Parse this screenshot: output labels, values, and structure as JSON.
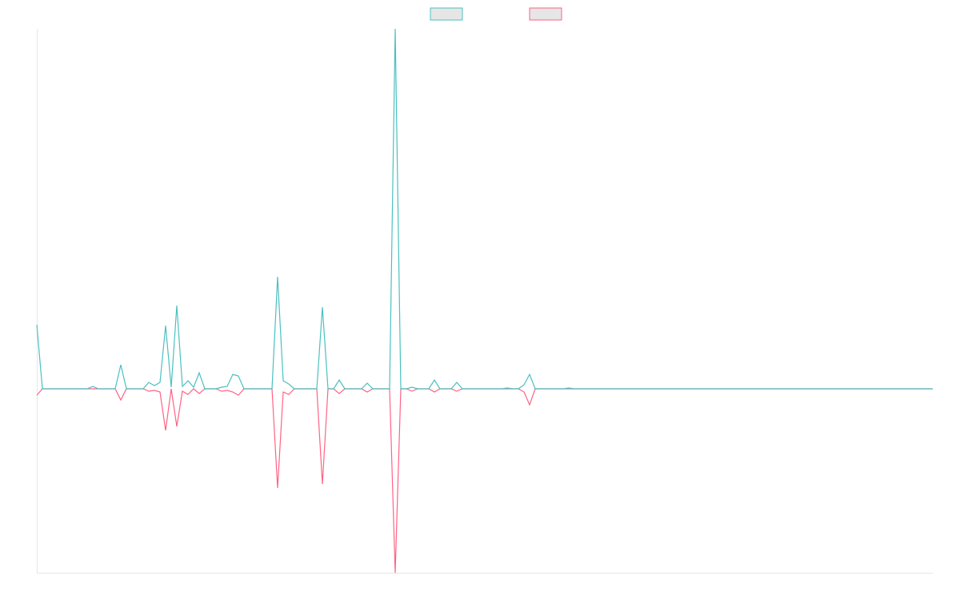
{
  "chart_data": {
    "type": "line",
    "ylim": [
      -230,
      450
    ],
    "legend": "top",
    "series": [
      {
        "color": "#4bc0c0",
        "values": [
          80,
          0,
          0,
          0,
          0,
          0,
          0,
          0,
          0,
          0,
          3,
          0,
          0,
          0,
          0,
          30,
          0,
          0,
          0,
          0,
          8,
          4,
          8,
          79,
          2,
          104,
          3,
          10,
          2,
          20,
          0,
          0,
          0,
          2,
          3,
          18,
          16,
          0,
          0,
          0,
          0,
          0,
          0,
          140,
          10,
          6,
          0,
          0,
          0,
          0,
          0,
          102,
          0,
          0,
          11,
          0,
          0,
          0,
          0,
          7,
          0,
          0,
          0,
          0,
          450,
          0,
          0,
          2,
          0,
          0,
          0,
          11,
          0,
          0,
          0,
          8,
          0,
          0,
          0,
          0,
          0,
          0,
          0,
          0,
          1,
          0,
          0,
          5,
          18,
          0,
          0,
          0,
          0,
          0,
          0,
          1,
          0,
          0,
          0,
          0,
          0,
          0,
          0,
          0,
          0,
          0,
          0,
          0,
          0,
          0,
          0,
          0,
          0,
          0,
          0,
          0,
          0,
          0,
          0,
          0,
          0,
          0,
          0,
          0,
          0,
          0,
          0,
          0,
          0,
          0,
          0,
          0,
          0,
          0,
          0,
          0,
          0,
          0,
          0,
          0,
          0,
          0,
          0,
          0,
          0,
          0,
          0,
          0,
          0,
          0,
          0,
          0,
          0,
          0,
          0,
          0,
          0,
          0,
          0,
          0,
          0
        ]
      },
      {
        "color": "#ff6384",
        "values": [
          -8,
          0,
          0,
          0,
          0,
          0,
          0,
          0,
          0,
          0,
          0,
          0,
          0,
          0,
          0,
          -14,
          0,
          0,
          0,
          0,
          -3,
          -2,
          -4,
          -52,
          0,
          -47,
          -3,
          -7,
          0,
          -6,
          0,
          0,
          0,
          -3,
          -2,
          -4,
          -8,
          0,
          0,
          0,
          0,
          0,
          0,
          -124,
          -4,
          -7,
          0,
          0,
          0,
          0,
          0,
          -119,
          0,
          0,
          -6,
          0,
          0,
          0,
          0,
          -4,
          0,
          0,
          0,
          0,
          -230,
          0,
          0,
          -3,
          0,
          0,
          0,
          -4,
          0,
          0,
          0,
          -3,
          0,
          0,
          0,
          0,
          0,
          0,
          0,
          0,
          0,
          0,
          0,
          -4,
          -20,
          0,
          0,
          0,
          0,
          0,
          0,
          0,
          0,
          0,
          0,
          0,
          0,
          0,
          0,
          0,
          0,
          0,
          0,
          0,
          0,
          0,
          0,
          0,
          0,
          0,
          0,
          0,
          0,
          0,
          0,
          0,
          0,
          0,
          0,
          0,
          0,
          0,
          0,
          0,
          0,
          0,
          0,
          0,
          0,
          0,
          0,
          0,
          0,
          0,
          0,
          0,
          0,
          0,
          0,
          0,
          0,
          0,
          0,
          0,
          0,
          0,
          0,
          0,
          0,
          0,
          0,
          0,
          0,
          0,
          0,
          0,
          0
        ]
      }
    ]
  }
}
